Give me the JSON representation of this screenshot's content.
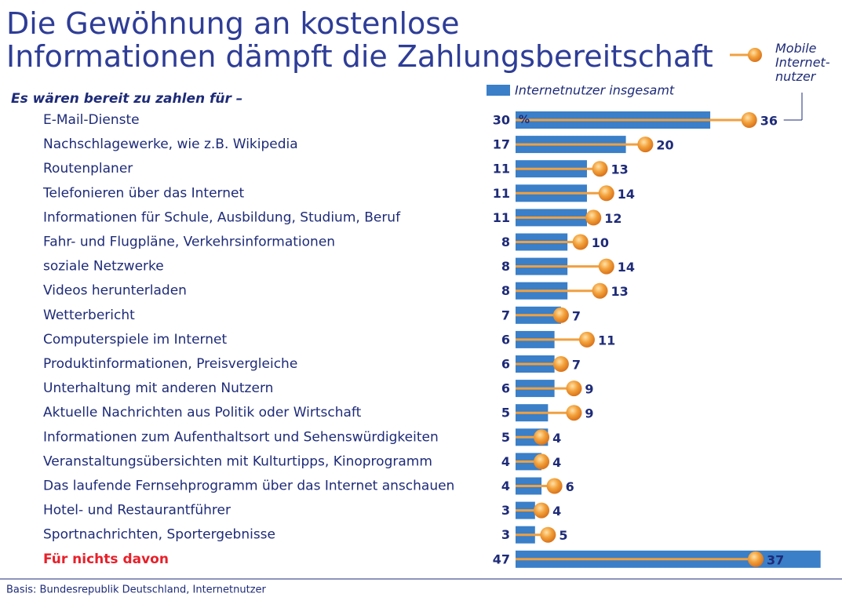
{
  "chart_data": {
    "type": "bar_dot",
    "title": "Die Gewöhnung an kostenlose Informationen dämpft die Zahlungsbereitschaft",
    "subtitle": "Es wären bereit zu zahlen für –",
    "unit_label": "%",
    "footnote": "Basis: Bundesrepublik Deutschland, Internetnutzer",
    "categories": [
      "E-Mail-Dienste",
      "Nachschlagewerke, wie z.B. Wikipedia",
      "Routenplaner",
      "Telefonieren über das Internet",
      "Informationen für Schule, Ausbildung, Studium, Beruf",
      "Fahr- und Flugpläne, Verkehrsinformationen",
      "soziale Netzwerke",
      "Videos herunterladen",
      "Wetterbericht",
      "Computerspiele im Internet",
      "Produktinformationen, Preisvergleiche",
      "Unterhaltung mit anderen Nutzern",
      "Aktuelle Nachrichten aus Politik oder Wirtschaft",
      "Informationen zum Aufenthaltsort und Sehenswürdigkeiten",
      "Veranstaltungsübersichten mit Kulturtipps, Kinoprogramm",
      "Das laufende Fernsehprogramm über das Internet anschauen",
      "Hotel- und Restaurantführer",
      "Sportnachrichten, Sportergebnisse",
      "Für nichts davon"
    ],
    "highlight_color": "#e8202a",
    "series": [
      {
        "name": "Internetnutzer insgesamt",
        "color": "#3a7fc8",
        "values": [
          30,
          17,
          11,
          11,
          11,
          8,
          8,
          8,
          7,
          6,
          6,
          6,
          5,
          5,
          4,
          4,
          3,
          3,
          47
        ]
      },
      {
        "name": "Mobile Internet-nutzer",
        "color": "#f0a040",
        "values": [
          36,
          20,
          13,
          14,
          12,
          10,
          14,
          13,
          7,
          11,
          7,
          9,
          9,
          4,
          4,
          6,
          4,
          5,
          37
        ]
      }
    ]
  }
}
